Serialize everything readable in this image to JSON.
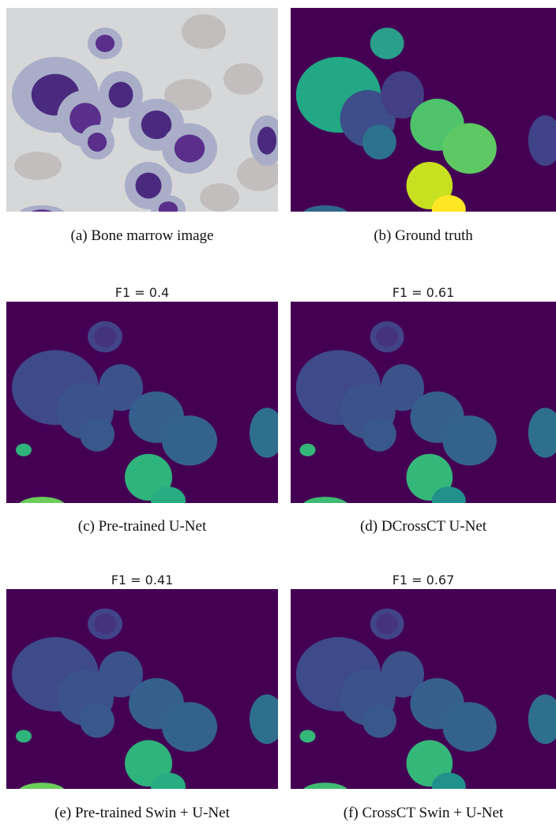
{
  "panels": [
    {
      "caption": "(a) Bone marrow image"
    },
    {
      "caption": "(b) Ground truth"
    },
    {
      "title": "F1 = 0.4",
      "caption": "(c) Pre-trained U-Net"
    },
    {
      "title": "F1 = 0.61",
      "caption": "(d) DCrossCT U-Net"
    },
    {
      "title": "F1 = 0.41",
      "caption": "(e) Pre-trained Swin + U-Net"
    },
    {
      "title": "F1 = 0.67",
      "caption": "(f) CrossCT Swin + U-Net"
    }
  ]
}
